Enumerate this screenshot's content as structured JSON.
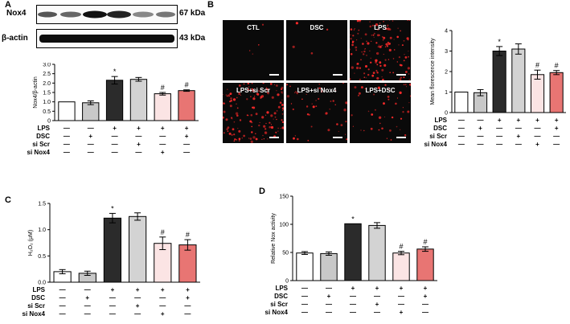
{
  "panels": {
    "A": "A",
    "B": "B",
    "C": "C",
    "D": "D"
  },
  "blot": {
    "rows": [
      {
        "label": "Nox4",
        "kda": "67 kDa"
      },
      {
        "label": "β-actin",
        "kda": "43 kDa"
      }
    ]
  },
  "micrographs": {
    "labels": [
      "CTL",
      "DSC",
      "LPS",
      "LPS+si Scr",
      "LPS+si Nox4",
      "LPS+DSC"
    ],
    "red_color": "#ff2a2a"
  },
  "conditions": {
    "row_labels": [
      "LPS",
      "DSC",
      "si Scr",
      "si Nox4"
    ],
    "matrix": [
      [
        "—",
        "—",
        "+",
        "+",
        "+",
        "+"
      ],
      [
        "—",
        "+",
        "—",
        "—",
        "—",
        "+"
      ],
      [
        "—",
        "—",
        "—",
        "+",
        "—",
        "—"
      ],
      [
        "—",
        "—",
        "—",
        "—",
        "+",
        "—"
      ]
    ]
  },
  "bar_colors": [
    "#ffffff",
    "#c8c8c8",
    "#2b2b2b",
    "#d3d3d3",
    "#fbe4e4",
    "#e87573"
  ],
  "chart_data": [
    {
      "panel": "A",
      "type": "bar",
      "ylabel": "Nox4/β-actin",
      "ylim": [
        0,
        3
      ],
      "yticks": [
        "0",
        "0.5",
        "1.0",
        "1.5",
        "2.0",
        "2.5",
        "3.0"
      ],
      "values": [
        1.0,
        0.95,
        2.15,
        2.2,
        1.43,
        1.6
      ],
      "errors": [
        0,
        0.1,
        0.2,
        0.1,
        0.07,
        0.04
      ],
      "marks": [
        "",
        "",
        "*",
        "",
        "#",
        "#"
      ]
    },
    {
      "panel": "B",
      "type": "bar",
      "ylabel": "Mean florescence intensity",
      "ylim": [
        0,
        4
      ],
      "yticks": [
        "0",
        "1",
        "2",
        "3",
        "4"
      ],
      "values": [
        1.0,
        0.97,
        3.0,
        3.1,
        1.85,
        1.95
      ],
      "errors": [
        0,
        0.15,
        0.22,
        0.25,
        0.22,
        0.1
      ],
      "marks": [
        "",
        "",
        "*",
        "",
        "#",
        "#"
      ]
    },
    {
      "panel": "C",
      "type": "bar",
      "ylabel": "H₂O₂ (μM)",
      "ylim": [
        0,
        1.5
      ],
      "yticks": [
        "0.0",
        "0.5",
        "1.0",
        "1.5"
      ],
      "values": [
        0.2,
        0.17,
        1.22,
        1.25,
        0.74,
        0.71
      ],
      "errors": [
        0.04,
        0.04,
        0.09,
        0.07,
        0.12,
        0.1
      ],
      "marks": [
        "",
        "",
        "*",
        "",
        "#",
        "#"
      ]
    },
    {
      "panel": "D",
      "type": "bar",
      "ylabel": "Relative Nox activity",
      "ylim": [
        0,
        150
      ],
      "yticks": [
        "0",
        "50",
        "100",
        "150"
      ],
      "values": [
        49,
        48,
        101,
        98,
        49,
        56
      ],
      "errors": [
        2.5,
        3,
        0,
        5,
        3,
        4
      ],
      "marks": [
        "",
        "",
        "*",
        "",
        "#",
        "#"
      ]
    }
  ]
}
